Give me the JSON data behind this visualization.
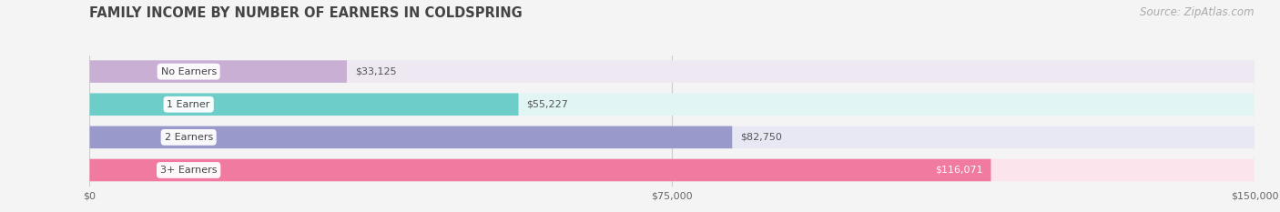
{
  "title": "FAMILY INCOME BY NUMBER OF EARNERS IN COLDSPRING",
  "source": "Source: ZipAtlas.com",
  "categories": [
    "No Earners",
    "1 Earner",
    "2 Earners",
    "3+ Earners"
  ],
  "values": [
    33125,
    55227,
    82750,
    116071
  ],
  "bar_colors": [
    "#c9afd4",
    "#6dcdc8",
    "#9999cc",
    "#f07aa0"
  ],
  "bar_bg_colors": [
    "#ede8f2",
    "#e0f5f4",
    "#e8e8f4",
    "#fce4ed"
  ],
  "label_colors": [
    "#555555",
    "#555555",
    "#555555",
    "#ffffff"
  ],
  "value_labels": [
    "$33,125",
    "$55,227",
    "$82,750",
    "$116,071"
  ],
  "x_ticks": [
    0,
    75000,
    150000
  ],
  "x_tick_labels": [
    "$0",
    "$75,000",
    "$150,000"
  ],
  "xlim": [
    0,
    150000
  ],
  "bg_color": "#f4f4f4",
  "title_color": "#444444",
  "source_color": "#aaaaaa",
  "title_fontsize": 10.5,
  "source_fontsize": 8.5,
  "bar_height": 0.68
}
